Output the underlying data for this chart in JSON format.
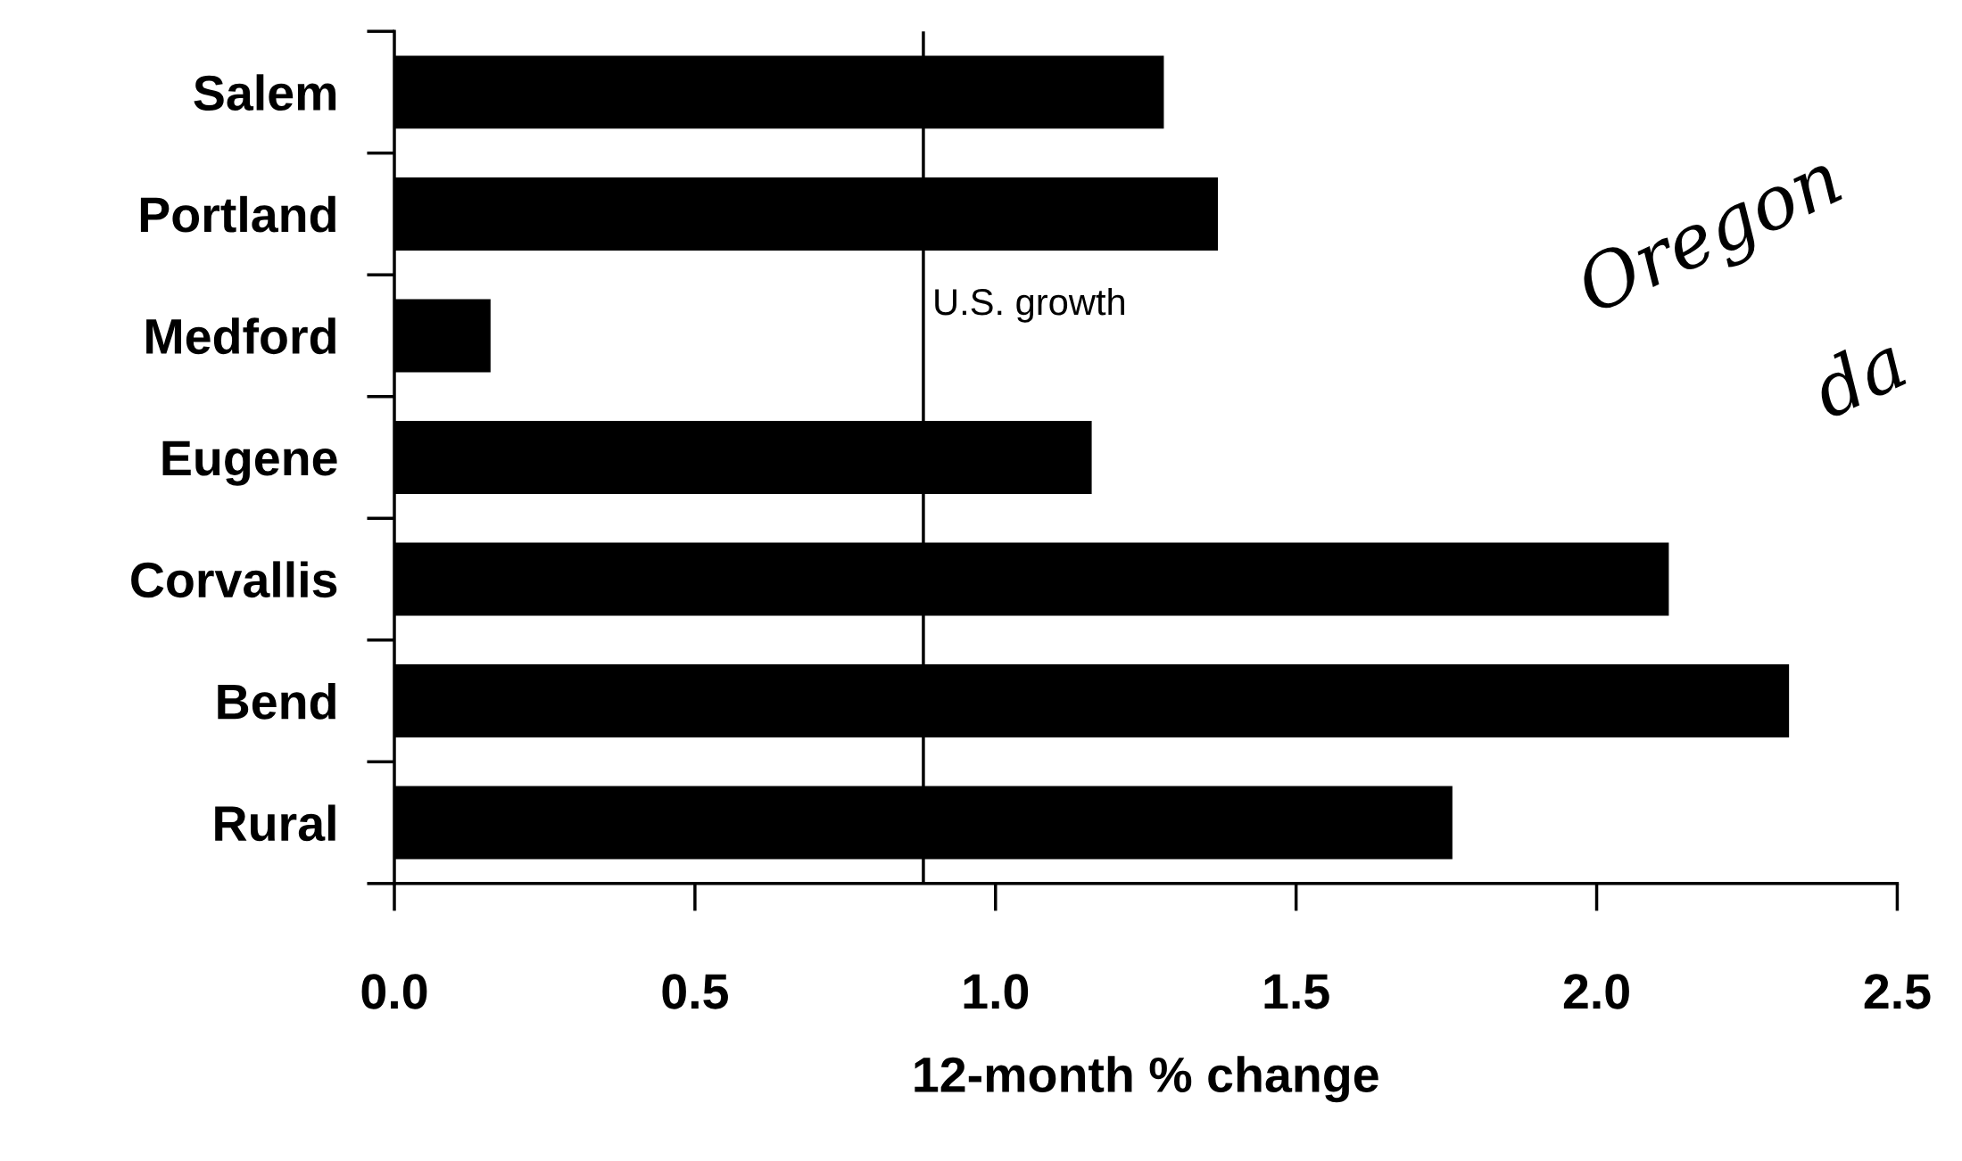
{
  "chart_data": {
    "type": "bar",
    "orientation": "horizontal",
    "xlabel": "12-month % change",
    "categories": [
      "Salem",
      "Portland",
      "Medford",
      "Eugene",
      "Corvallis",
      "Bend",
      "Rural"
    ],
    "values": [
      1.28,
      1.37,
      0.16,
      1.16,
      2.12,
      2.32,
      1.76
    ],
    "color": "#000000",
    "xlim": [
      0,
      2.5
    ],
    "xticks": [
      {
        "value": 0,
        "label": "0.0"
      },
      0.5,
      {
        "value": 1,
        "label": "1.0"
      },
      1.5,
      {
        "value": 2,
        "label": "2.0"
      },
      2.5
    ],
    "ref_lines": [
      {
        "axis": "x",
        "value": 0.88,
        "label": "U.S. growth",
        "color": "#000000"
      }
    ],
    "annotations": [
      "Oregon",
      "da"
    ],
    "grid": false,
    "legend": false
  }
}
